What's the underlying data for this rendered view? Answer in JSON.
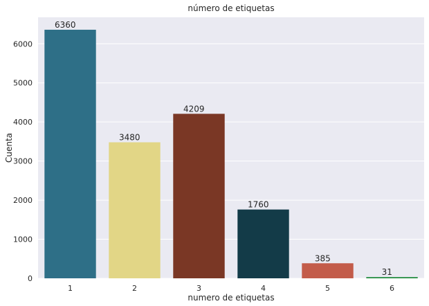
{
  "chart_data": {
    "type": "bar",
    "title": "número de etiquetas",
    "xlabel": "numero de etiquetas",
    "ylabel": "Cuenta",
    "categories": [
      "1",
      "2",
      "3",
      "4",
      "5",
      "6"
    ],
    "values": [
      6360,
      3480,
      4209,
      1760,
      385,
      31
    ],
    "data_labels": [
      "6360",
      "3480",
      "4209",
      "1760",
      "385",
      "31"
    ],
    "bar_colors": [
      "#2e6f87",
      "#e2d686",
      "#7a3725",
      "#133b48",
      "#c35c4a",
      "#1e8a3c"
    ],
    "yticks": [
      0,
      1000,
      2000,
      3000,
      4000,
      5000,
      6000
    ],
    "ylim": [
      0,
      6678
    ],
    "grid": true,
    "background": "#eaeaf2"
  }
}
